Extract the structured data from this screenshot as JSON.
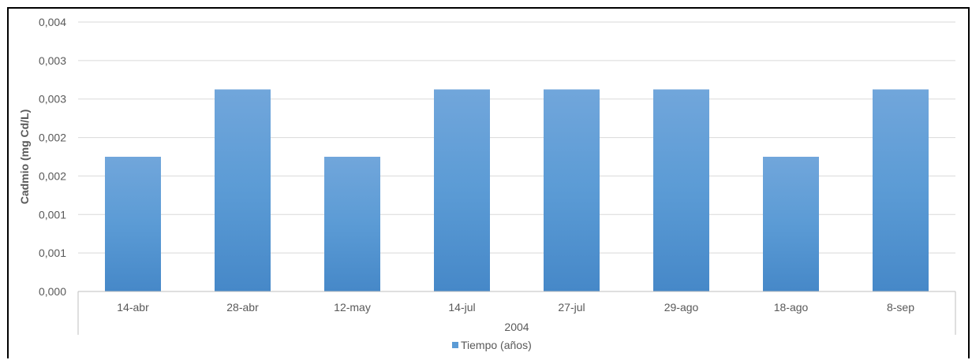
{
  "chart_data": {
    "type": "bar",
    "categories": [
      "14-abr",
      "28-abr",
      "12-may",
      "14-jul",
      "27-jul",
      "29-ago",
      "18-ago",
      "8-sep"
    ],
    "group_label": "2004",
    "series": [
      {
        "name": "Tiempo (años)",
        "values": [
          0.002,
          0.003,
          0.002,
          0.003,
          0.003,
          0.003,
          0.002,
          0.003
        ]
      }
    ],
    "ylabel": "Cadmio (mg Cd/L)",
    "ylim": [
      0,
      0.004
    ],
    "yticks": [
      "0,000",
      "0,001",
      "0,001",
      "0,002",
      "0,002",
      "0,003",
      "0,003",
      "0,004"
    ],
    "grid": true,
    "legend_position": "bottom",
    "colors": {
      "bar_top": "#6fa8dc",
      "bar_mid": "#5b9bd5",
      "bar_bottom": "#4a89c8",
      "grid": "#d9d9d9",
      "axis": "#bfbfbf",
      "text": "#595959"
    }
  }
}
